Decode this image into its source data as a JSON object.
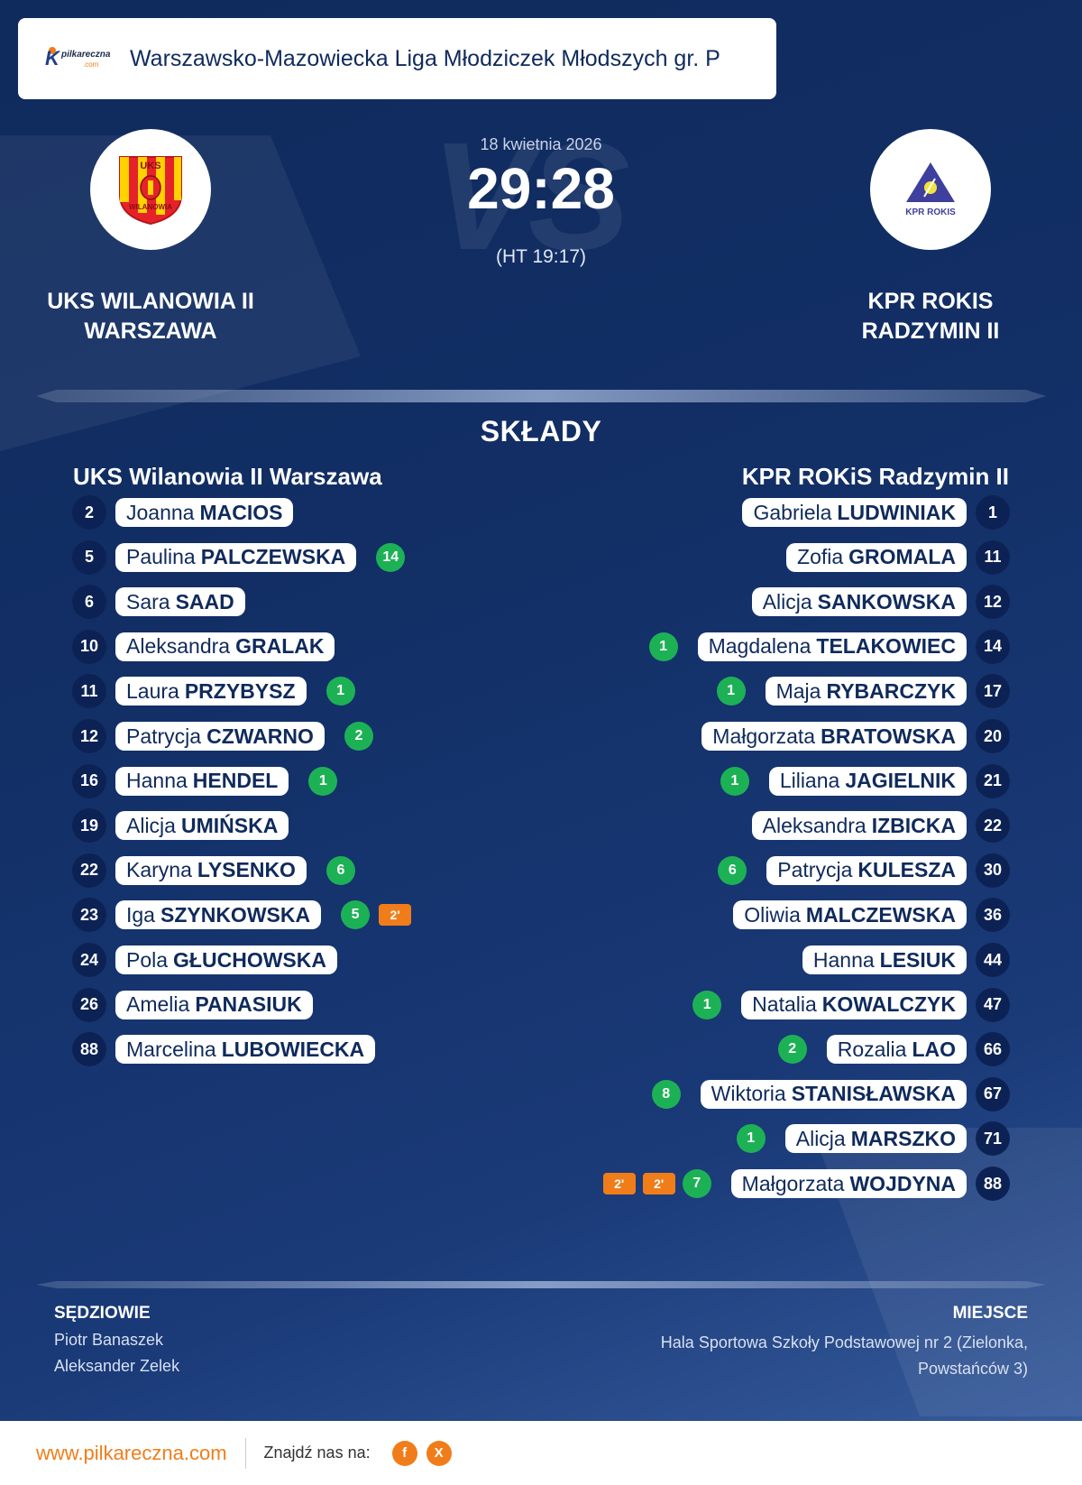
{
  "header": {
    "logo_text": "pilkareczna",
    "logo_suffix": ".com",
    "league": "Warszawsko-Mazowiecka Liga Młodziczek Młodszych gr. P"
  },
  "match": {
    "date": "18 kwietnia 2026",
    "score": "29:28",
    "halftime": "(HT 19:17)",
    "vs_watermark": "VS"
  },
  "home": {
    "name_line1": "UKS WILANOWIA II",
    "name_line2": "WARSZAWA",
    "squad_title": "UKS Wilanowia II Warszawa",
    "crest_text_top": "UKS",
    "crest_text_bottom": "WILANOWIA",
    "players": [
      {
        "no": "2",
        "first": "Joanna",
        "last": "MACIOS",
        "goals": "",
        "pens": []
      },
      {
        "no": "5",
        "first": "Paulina",
        "last": "PALCZEWSKA",
        "goals": "14",
        "pens": []
      },
      {
        "no": "6",
        "first": "Sara",
        "last": "SAAD",
        "goals": "",
        "pens": []
      },
      {
        "no": "10",
        "first": "Aleksandra",
        "last": "GRALAK",
        "goals": "",
        "pens": []
      },
      {
        "no": "11",
        "first": "Laura",
        "last": "PRZYBYSZ",
        "goals": "1",
        "pens": []
      },
      {
        "no": "12",
        "first": "Patrycja",
        "last": "CZWARNO",
        "goals": "2",
        "pens": []
      },
      {
        "no": "16",
        "first": "Hanna",
        "last": "HENDEL",
        "goals": "1",
        "pens": []
      },
      {
        "no": "19",
        "first": "Alicja",
        "last": "UMIŃSKA",
        "goals": "",
        "pens": []
      },
      {
        "no": "22",
        "first": "Karyna",
        "last": "LYSENKO",
        "goals": "6",
        "pens": []
      },
      {
        "no": "23",
        "first": "Iga",
        "last": "SZYNKOWSKA",
        "goals": "5",
        "pens": [
          "2'"
        ]
      },
      {
        "no": "24",
        "first": "Pola",
        "last": "GŁUCHOWSKA",
        "goals": "",
        "pens": []
      },
      {
        "no": "26",
        "first": "Amelia",
        "last": "PANASIUK",
        "goals": "",
        "pens": []
      },
      {
        "no": "88",
        "first": "Marcelina",
        "last": "LUBOWIECKA",
        "goals": "",
        "pens": []
      }
    ]
  },
  "away": {
    "name_line1": "KPR ROKIS",
    "name_line2": "RADZYMIN II",
    "squad_title": "KPR ROKiS Radzymin II",
    "crest_text": "KPR ROKIS",
    "players": [
      {
        "no": "1",
        "first": "Gabriela",
        "last": "LUDWINIAK",
        "goals": "",
        "pens": []
      },
      {
        "no": "11",
        "first": "Zofia",
        "last": "GROMALA",
        "goals": "",
        "pens": []
      },
      {
        "no": "12",
        "first": "Alicja",
        "last": "SANKOWSKA",
        "goals": "",
        "pens": []
      },
      {
        "no": "14",
        "first": "Magdalena",
        "last": "TELAKOWIEC",
        "goals": "1",
        "pens": []
      },
      {
        "no": "17",
        "first": "Maja",
        "last": "RYBARCZYK",
        "goals": "1",
        "pens": []
      },
      {
        "no": "20",
        "first": "Małgorzata",
        "last": "BRATOWSKA",
        "goals": "",
        "pens": []
      },
      {
        "no": "21",
        "first": "Liliana",
        "last": "JAGIELNIK",
        "goals": "1",
        "pens": []
      },
      {
        "no": "22",
        "first": "Aleksandra",
        "last": "IZBICKA",
        "goals": "",
        "pens": []
      },
      {
        "no": "30",
        "first": "Patrycja",
        "last": "KULESZA",
        "goals": "6",
        "pens": []
      },
      {
        "no": "36",
        "first": "Oliwia",
        "last": "MALCZEWSKA",
        "goals": "",
        "pens": []
      },
      {
        "no": "44",
        "first": "Hanna",
        "last": "LESIUK",
        "goals": "",
        "pens": []
      },
      {
        "no": "47",
        "first": "Natalia",
        "last": "KOWALCZYK",
        "goals": "1",
        "pens": []
      },
      {
        "no": "66",
        "first": "Rozalia",
        "last": "LAO",
        "goals": "2",
        "pens": []
      },
      {
        "no": "67",
        "first": "Wiktoria",
        "last": "STANISŁAWSKA",
        "goals": "8",
        "pens": []
      },
      {
        "no": "71",
        "first": "Alicja",
        "last": "MARSZKO",
        "goals": "1",
        "pens": []
      },
      {
        "no": "88",
        "first": "Małgorzata",
        "last": "WOJDYNA",
        "goals": "7",
        "pens": [
          "2'",
          "2'"
        ]
      }
    ]
  },
  "section_title": "SKŁADY",
  "referees": {
    "title": "SĘDZIOWIE",
    "names": [
      "Piotr Banaszek",
      "Aleksander Zelek"
    ]
  },
  "venue": {
    "title": "MIEJSCE",
    "text": "Hala Sportowa Szkoły Podstawowej nr 2 (Zielonka, Powstańców 3)"
  },
  "footer": {
    "site": "www.pilkareczna.com",
    "find_us": "Znajdź nas na:",
    "social": [
      {
        "icon": "facebook-icon",
        "glyph": "f"
      },
      {
        "icon": "x-icon",
        "glyph": "X"
      }
    ]
  },
  "colors": {
    "goal": "#1db156",
    "penalty": "#f07d1a",
    "brand_orange": "#f07d1a",
    "navy": "#0f2a5c"
  }
}
